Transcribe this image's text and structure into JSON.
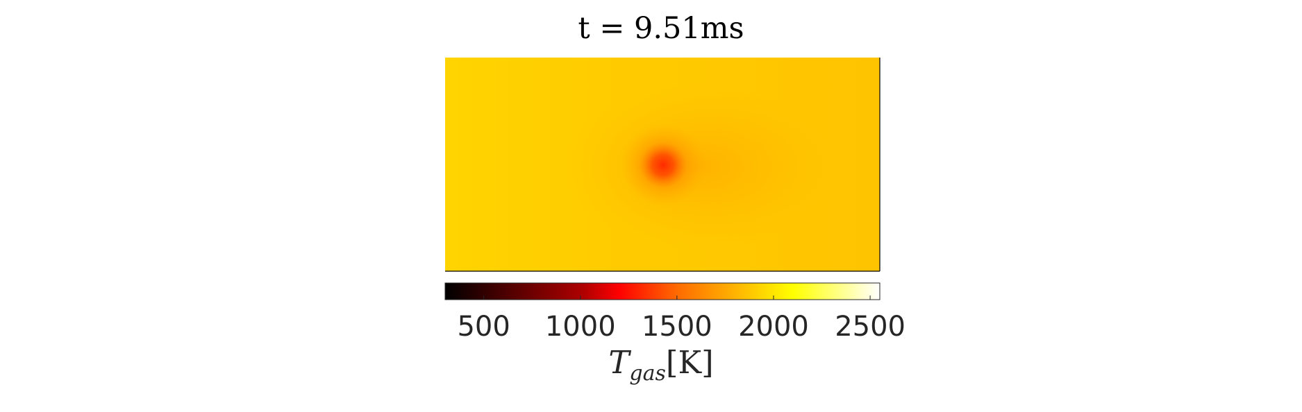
{
  "chart_data": {
    "type": "heatmap",
    "title": "t = 9.51ms",
    "field": {
      "hotspot_value": 1450,
      "ambient_left_value": 2030,
      "ambient_right_value": 1990,
      "plume_value": 1800
    },
    "colorbar": {
      "colormap": "hot",
      "range": [
        300,
        2550
      ],
      "ticks": [
        500,
        1000,
        1500,
        2000,
        2500
      ],
      "tick_labels": [
        "500",
        "1000",
        "1500",
        "2000",
        "2500"
      ],
      "label": {
        "main": "T",
        "subscript": "gas",
        "unit": "[K]"
      },
      "stops": [
        {
          "v": 300,
          "color": "#000000"
        },
        {
          "v": 1020,
          "color": "#b00000"
        },
        {
          "v": 1200,
          "color": "#ff0000"
        },
        {
          "v": 1500,
          "color": "#ff6a00"
        },
        {
          "v": 1900,
          "color": "#ffcc00"
        },
        {
          "v": 2100,
          "color": "#ffff00"
        },
        {
          "v": 2550,
          "color": "#ffffff"
        }
      ]
    },
    "grid": false
  }
}
